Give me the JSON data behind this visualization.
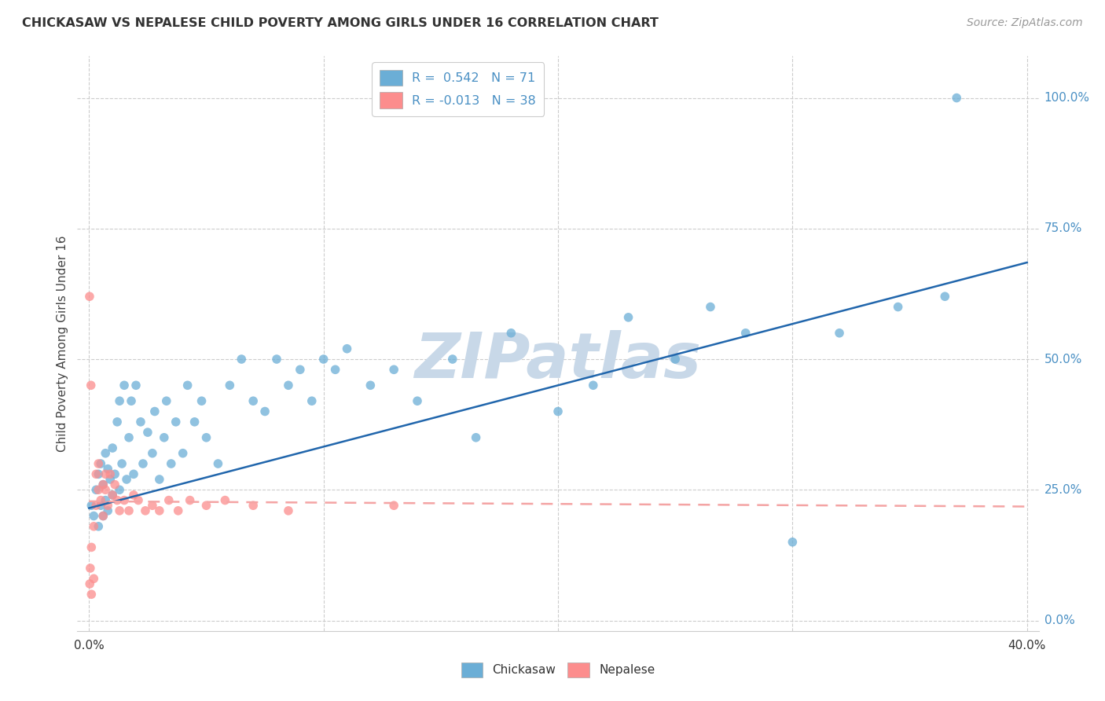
{
  "title": "CHICKASAW VS NEPALESE CHILD POVERTY AMONG GIRLS UNDER 16 CORRELATION CHART",
  "source": "Source: ZipAtlas.com",
  "ylabel": "Child Poverty Among Girls Under 16",
  "ytick_labels": [
    "0.0%",
    "25.0%",
    "50.0%",
    "75.0%",
    "100.0%"
  ],
  "ytick_values": [
    0.0,
    0.25,
    0.5,
    0.75,
    1.0
  ],
  "xlim": [
    -0.005,
    0.405
  ],
  "ylim": [
    -0.02,
    1.08
  ],
  "plot_ylim": [
    0.0,
    1.05
  ],
  "chickasaw_R": 0.542,
  "chickasaw_N": 71,
  "nepalese_R": -0.013,
  "nepalese_N": 38,
  "chickasaw_color": "#6baed6",
  "nepalese_color": "#fc8d8d",
  "trendline_chickasaw_color": "#2166ac",
  "trendline_nepalese_color": "#f4a4a4",
  "watermark": "ZIPatlas",
  "watermark_color": "#c8d8e8",
  "background_color": "#ffffff",
  "grid_color": "#cccccc",
  "chick_trend_x0": 0.0,
  "chick_trend_y0": 0.215,
  "chick_trend_x1": 0.4,
  "chick_trend_y1": 0.685,
  "nepal_trend_x0": 0.0,
  "nepal_trend_y0": 0.228,
  "nepal_trend_x1": 0.4,
  "nepal_trend_y1": 0.218,
  "chickasaw_x": [
    0.001,
    0.002,
    0.003,
    0.004,
    0.004,
    0.005,
    0.005,
    0.006,
    0.006,
    0.007,
    0.007,
    0.008,
    0.008,
    0.009,
    0.01,
    0.01,
    0.011,
    0.012,
    0.013,
    0.013,
    0.014,
    0.015,
    0.016,
    0.017,
    0.018,
    0.019,
    0.02,
    0.022,
    0.023,
    0.025,
    0.027,
    0.028,
    0.03,
    0.032,
    0.033,
    0.035,
    0.037,
    0.04,
    0.042,
    0.045,
    0.048,
    0.05,
    0.055,
    0.06,
    0.065,
    0.07,
    0.075,
    0.08,
    0.085,
    0.09,
    0.095,
    0.1,
    0.105,
    0.11,
    0.12,
    0.13,
    0.14,
    0.155,
    0.165,
    0.18,
    0.2,
    0.215,
    0.23,
    0.25,
    0.265,
    0.28,
    0.3,
    0.32,
    0.345,
    0.365,
    0.37
  ],
  "chickasaw_y": [
    0.22,
    0.2,
    0.25,
    0.18,
    0.28,
    0.22,
    0.3,
    0.2,
    0.26,
    0.23,
    0.32,
    0.21,
    0.29,
    0.27,
    0.33,
    0.24,
    0.28,
    0.38,
    0.25,
    0.42,
    0.3,
    0.45,
    0.27,
    0.35,
    0.42,
    0.28,
    0.45,
    0.38,
    0.3,
    0.36,
    0.32,
    0.4,
    0.27,
    0.35,
    0.42,
    0.3,
    0.38,
    0.32,
    0.45,
    0.38,
    0.42,
    0.35,
    0.3,
    0.45,
    0.5,
    0.42,
    0.4,
    0.5,
    0.45,
    0.48,
    0.42,
    0.5,
    0.48,
    0.52,
    0.45,
    0.48,
    0.42,
    0.5,
    0.35,
    0.55,
    0.4,
    0.45,
    0.58,
    0.5,
    0.6,
    0.55,
    0.15,
    0.55,
    0.6,
    0.62,
    1.0
  ],
  "nepalese_x": [
    0.0002,
    0.0003,
    0.0005,
    0.0008,
    0.001,
    0.001,
    0.002,
    0.002,
    0.003,
    0.003,
    0.004,
    0.004,
    0.005,
    0.006,
    0.006,
    0.007,
    0.007,
    0.008,
    0.009,
    0.01,
    0.011,
    0.012,
    0.013,
    0.015,
    0.017,
    0.019,
    0.021,
    0.024,
    0.027,
    0.03,
    0.034,
    0.038,
    0.043,
    0.05,
    0.058,
    0.07,
    0.085,
    0.13
  ],
  "nepalese_y": [
    0.62,
    0.07,
    0.1,
    0.45,
    0.05,
    0.14,
    0.08,
    0.18,
    0.22,
    0.28,
    0.25,
    0.3,
    0.23,
    0.26,
    0.2,
    0.28,
    0.25,
    0.22,
    0.28,
    0.24,
    0.26,
    0.23,
    0.21,
    0.23,
    0.21,
    0.24,
    0.23,
    0.21,
    0.22,
    0.21,
    0.23,
    0.21,
    0.23,
    0.22,
    0.23,
    0.22,
    0.21,
    0.22
  ]
}
